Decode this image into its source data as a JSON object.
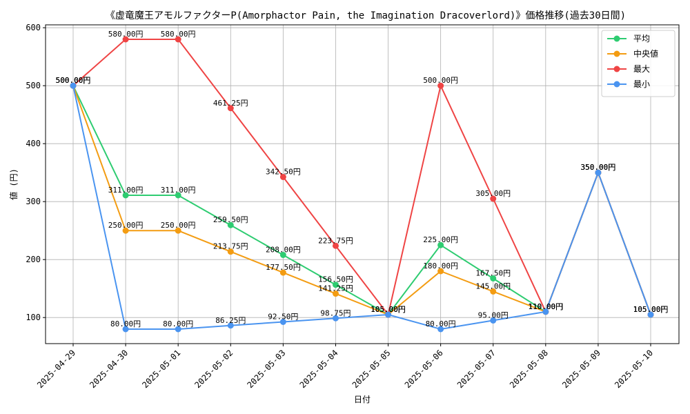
{
  "chart_data": {
    "type": "line",
    "title": "《虚竜魔王アモルファクターP(Amorphactor Pain, the Imagination Dracoverlord)》価格推移(過去30日間)",
    "xlabel": "日付",
    "ylabel": "値 (円)",
    "ylim": [
      55,
      605
    ],
    "yticks": [
      100,
      200,
      300,
      400,
      500,
      600
    ],
    "grid": true,
    "legend_position": "top-right",
    "value_suffix": "円",
    "categories": [
      "2025-04-29",
      "2025-04-30",
      "2025-05-01",
      "2025-05-02",
      "2025-05-03",
      "2025-05-04",
      "2025-05-05",
      "2025-05-06",
      "2025-05-07",
      "2025-05-08",
      "2025-05-09",
      "2025-05-10"
    ],
    "series": [
      {
        "name": "平均",
        "color": "#2ecc71",
        "values": [
          500.0,
          311.0,
          311.0,
          259.5,
          208.0,
          156.5,
          105.0,
          225.0,
          167.5,
          110.0,
          350.0,
          105.0
        ]
      },
      {
        "name": "中央値",
        "color": "#f39c12",
        "values": [
          500.0,
          250.0,
          250.0,
          213.75,
          177.5,
          141.25,
          105.0,
          180.0,
          145.0,
          110.0,
          350.0,
          105.0
        ]
      },
      {
        "name": "最大",
        "color": "#ef4444",
        "values": [
          500.0,
          580.0,
          580.0,
          461.25,
          342.5,
          223.75,
          105.0,
          500.0,
          305.0,
          110.0,
          350.0,
          105.0
        ]
      },
      {
        "name": "最小",
        "color": "#4a94f0",
        "values": [
          500.0,
          80.0,
          80.0,
          86.25,
          92.5,
          98.75,
          105.0,
          80.0,
          95.0,
          110.0,
          350.0,
          105.0
        ]
      }
    ]
  }
}
